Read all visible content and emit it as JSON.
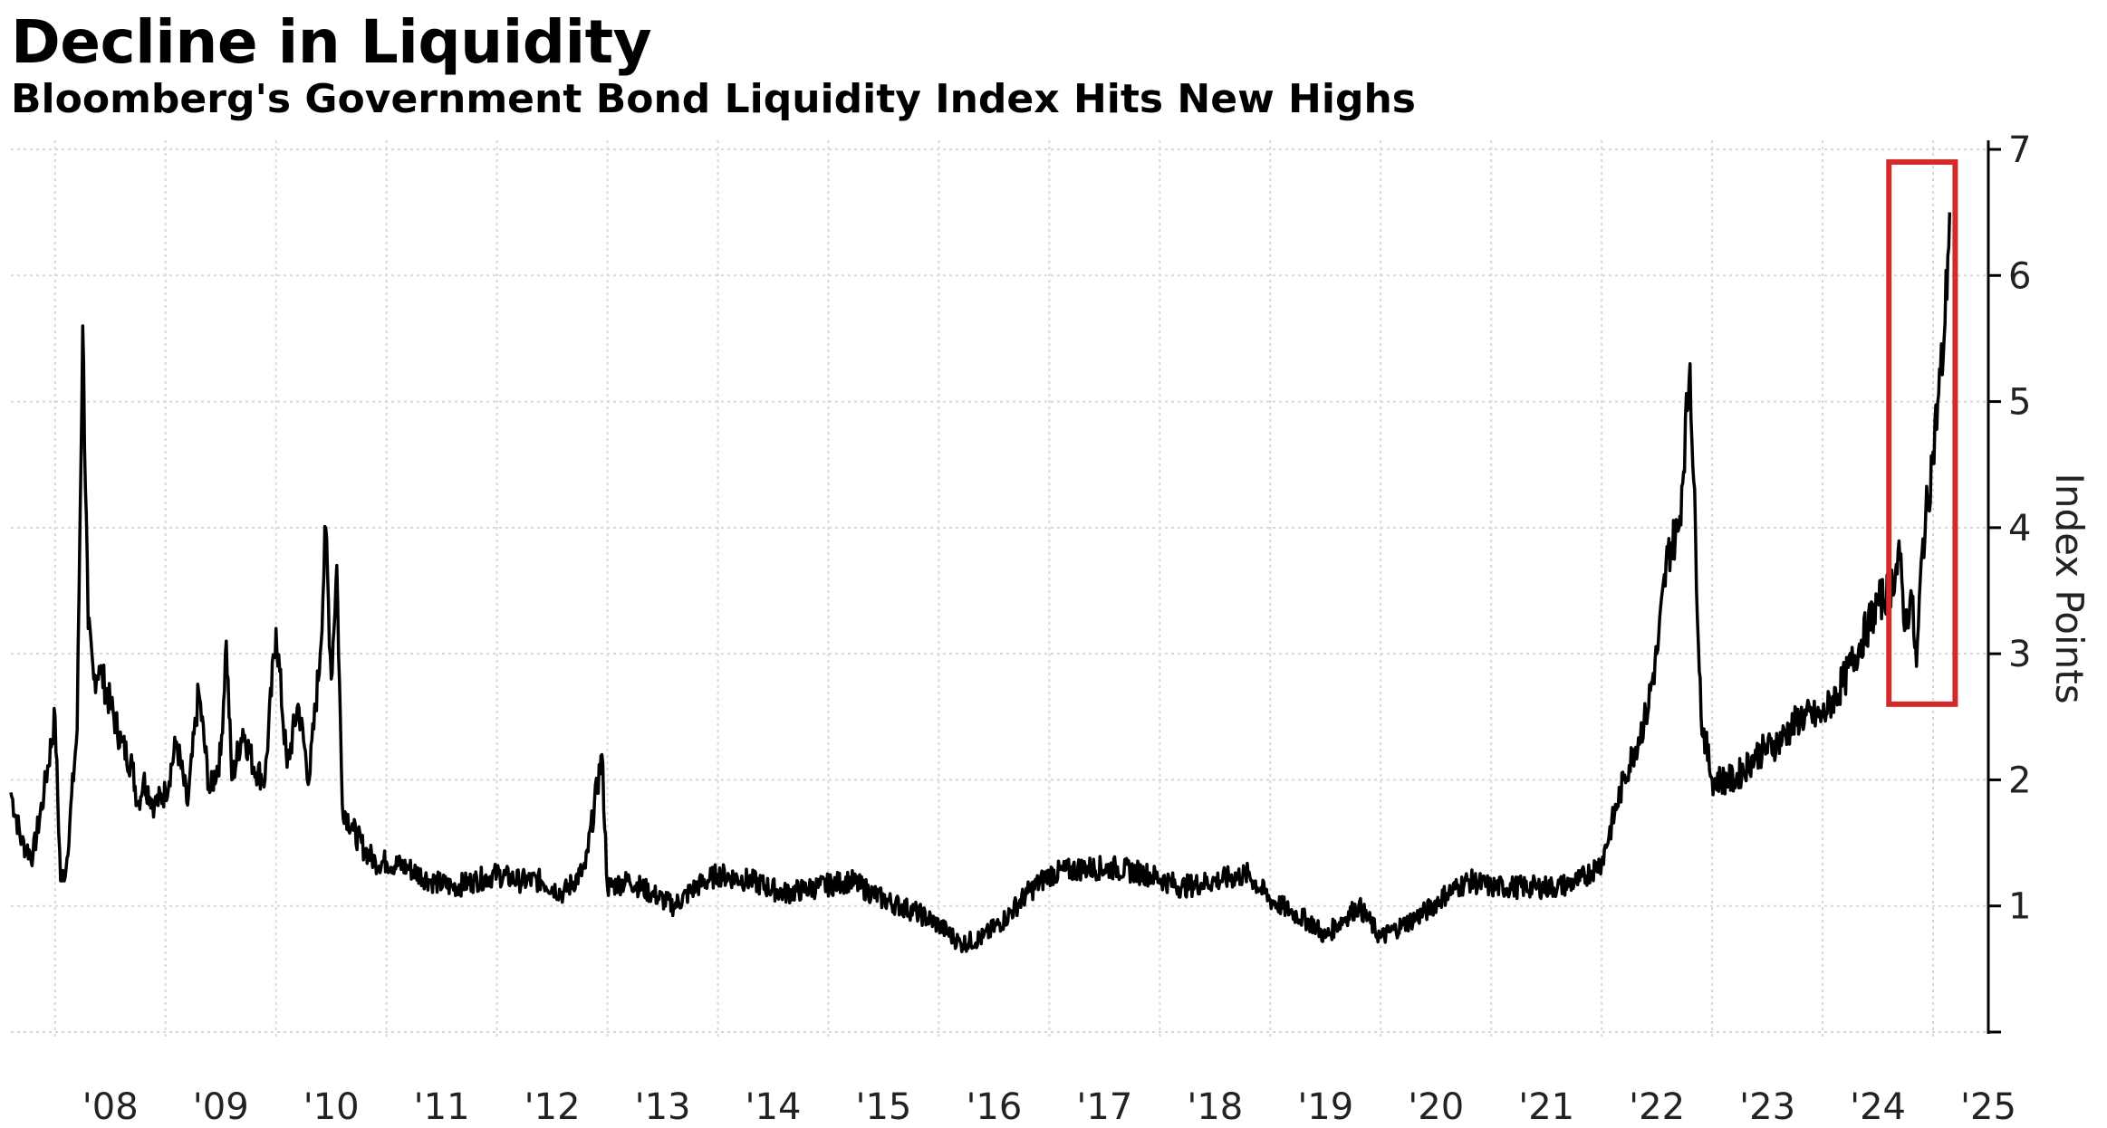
{
  "title": "Decline in Liquidity",
  "subtitle": "Bloomberg's Government Bond Liquidity Index Hits New Highs",
  "chart_data": {
    "type": "line",
    "title": "Decline in Liquidity",
    "subtitle": "Bloomberg's Government Bond Liquidity Index Hits New Highs",
    "xlabel": "",
    "ylabel": "Index Points",
    "xlim": [
      2007.6,
      2025.5
    ],
    "ylim": [
      0,
      7
    ],
    "yticks": [
      1,
      2,
      3,
      4,
      5,
      6,
      7
    ],
    "xtick_labels": [
      "'08",
      "'09",
      "'10",
      "'11",
      "'12",
      "'13",
      "'14",
      "'15",
      "'16",
      "'17",
      "'18",
      "'19",
      "'20",
      "'21",
      "'22",
      "'23",
      "'24",
      "'25"
    ],
    "grid": true,
    "highlight_box": {
      "x_range": [
        2024.6,
        2025.2
      ],
      "y_range": [
        2.6,
        6.9
      ],
      "color": "#d42a2a"
    },
    "line_color": "#000000",
    "series": [
      {
        "x": [
          2007.6,
          2007.7,
          2007.8,
          2007.9,
          2008.0,
          2008.05,
          2008.1,
          2008.2,
          2008.25,
          2008.3,
          2008.35,
          2008.4,
          2008.5,
          2008.6,
          2008.7,
          2008.75,
          2008.8,
          2008.9,
          2009.0,
          2009.1,
          2009.2,
          2009.3,
          2009.4,
          2009.5,
          2009.55,
          2009.6,
          2009.7,
          2009.8,
          2009.9,
          2010.0,
          2010.1,
          2010.2,
          2010.3,
          2010.4,
          2010.45,
          2010.5,
          2010.55,
          2010.6,
          2010.7,
          2010.8,
          2010.9,
          2011.0,
          2011.2,
          2011.4,
          2011.6,
          2011.8,
          2012.0,
          2012.2,
          2012.4,
          2012.6,
          2012.8,
          2012.95,
          2013.0,
          2013.2,
          2013.4,
          2013.6,
          2013.8,
          2014.0,
          2014.3,
          2014.6,
          2014.9,
          2015.2,
          2015.5,
          2015.8,
          2016.0,
          2016.2,
          2016.4,
          2016.6,
          2016.8,
          2017.0,
          2017.3,
          2017.6,
          2017.9,
          2018.2,
          2018.5,
          2018.8,
          2019.0,
          2019.2,
          2019.4,
          2019.5,
          2019.6,
          2019.8,
          2020.0,
          2020.2,
          2020.4,
          2020.6,
          2020.8,
          2021.0,
          2021.2,
          2021.4,
          2021.6,
          2021.8,
          2022.0,
          2022.2,
          2022.4,
          2022.5,
          2022.6,
          2022.7,
          2022.8,
          2022.9,
          2023.0,
          2023.2,
          2023.4,
          2023.6,
          2023.8,
          2024.0,
          2024.2,
          2024.4,
          2024.5,
          2024.6,
          2024.7,
          2024.75,
          2024.8,
          2024.85,
          2024.9,
          2025.0,
          2025.1,
          2025.15
        ],
        "values": [
          1.9,
          1.5,
          1.4,
          1.9,
          2.5,
          1.2,
          1.3,
          2.4,
          5.6,
          3.2,
          2.8,
          2.9,
          2.6,
          2.3,
          2.1,
          1.8,
          2.0,
          1.8,
          1.9,
          2.3,
          1.8,
          2.7,
          1.9,
          2.2,
          3.1,
          2.0,
          2.4,
          2.1,
          2.0,
          3.2,
          2.1,
          2.6,
          2.0,
          3.0,
          4.0,
          2.8,
          3.7,
          1.8,
          1.6,
          1.45,
          1.35,
          1.35,
          1.3,
          1.2,
          1.15,
          1.2,
          1.25,
          1.2,
          1.2,
          1.1,
          1.3,
          2.2,
          1.15,
          1.2,
          1.1,
          1.0,
          1.15,
          1.25,
          1.2,
          1.1,
          1.15,
          1.2,
          1.05,
          0.95,
          0.85,
          0.7,
          0.75,
          0.9,
          1.1,
          1.25,
          1.3,
          1.3,
          1.25,
          1.15,
          1.2,
          1.25,
          1.05,
          0.95,
          0.85,
          0.75,
          0.85,
          1.0,
          0.75,
          0.85,
          0.95,
          1.1,
          1.2,
          1.15,
          1.15,
          1.15,
          1.15,
          1.2,
          1.35,
          2.0,
          2.5,
          3.0,
          3.8,
          4.0,
          5.3,
          2.5,
          2.0,
          2.0,
          2.2,
          2.3,
          2.5,
          2.5,
          2.8,
          3.2,
          3.4,
          3.5,
          3.75,
          3.2,
          3.5,
          2.9,
          3.8,
          4.6,
          5.5,
          6.5
        ]
      }
    ]
  }
}
